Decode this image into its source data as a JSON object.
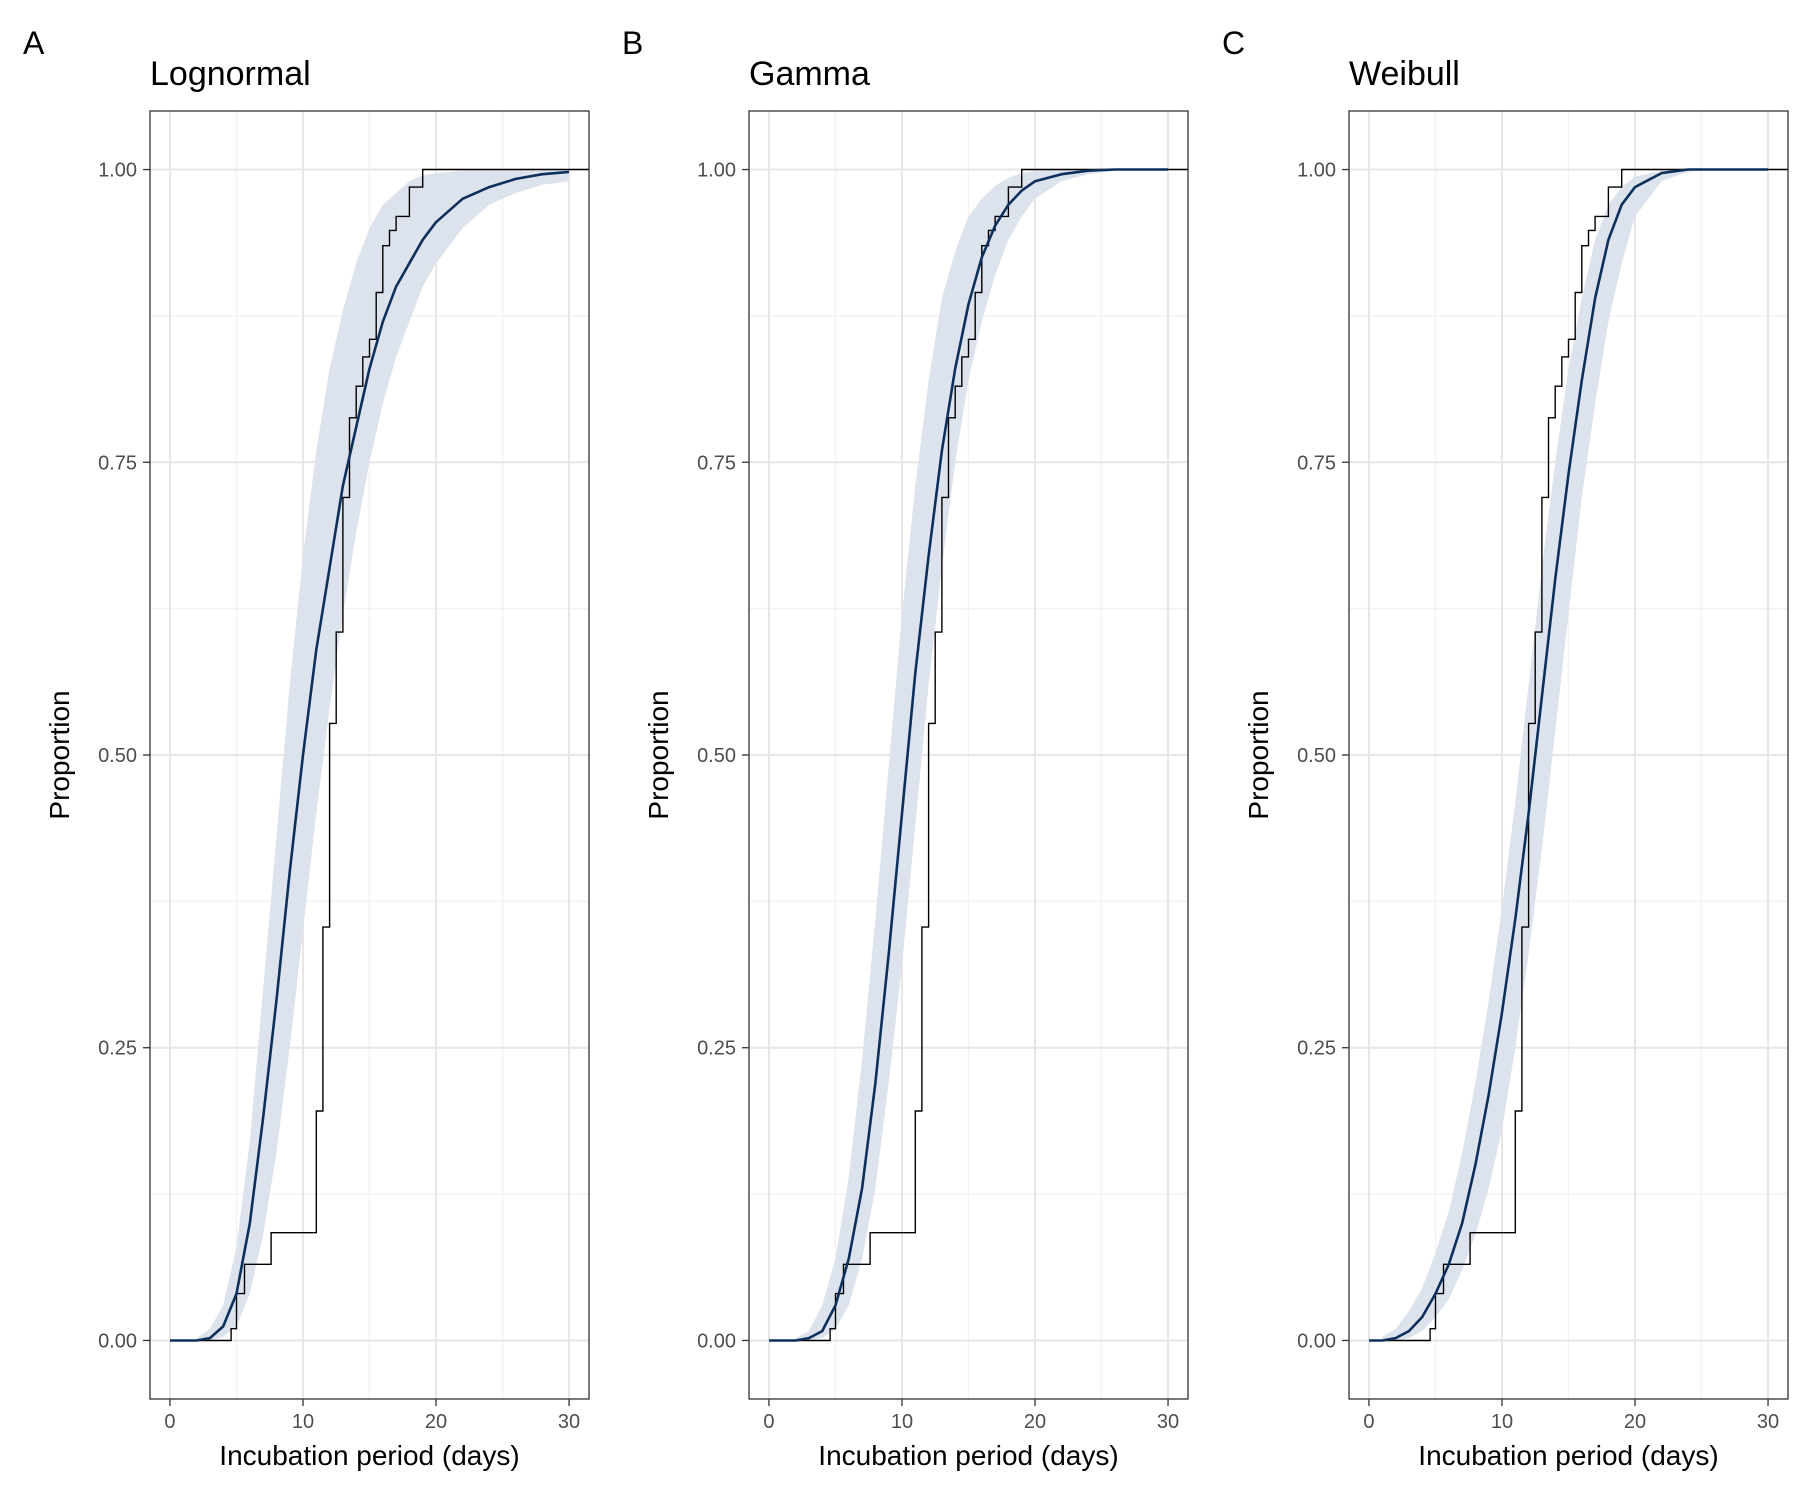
{
  "colors": {
    "fit_line": "#0d2f5c",
    "band_fill": "#dde3ec",
    "step_line": "#000000",
    "grid_major": "#e6e6e6",
    "grid_minor": "#f2f2f2",
    "panel_border": "#333333"
  },
  "chart_data": [
    {
      "type": "line",
      "panel_letter": "A",
      "title": "Lognormal",
      "xlabel": "Incubation period (days)",
      "ylabel": "Proportion",
      "xlim": [
        -1.5,
        31.5
      ],
      "ylim": [
        -0.05,
        1.05
      ],
      "x_ticks": [
        0,
        10,
        20,
        30
      ],
      "x_tick_labels": [
        "0",
        "10",
        "20",
        "30"
      ],
      "y_ticks": [
        0,
        0.25,
        0.5,
        0.75,
        1
      ],
      "y_tick_labels": [
        "0.00",
        "0.25",
        "0.50",
        "0.75",
        "1.00"
      ],
      "grid": true,
      "fit_curve": {
        "x": [
          0,
          2,
          3,
          4,
          5,
          6,
          7,
          8,
          9,
          10,
          11,
          12,
          13,
          14,
          15,
          16,
          17,
          18,
          19,
          20,
          22,
          24,
          26,
          28,
          30
        ],
        "y": [
          0,
          0,
          0.002,
          0.012,
          0.04,
          0.1,
          0.19,
          0.29,
          0.4,
          0.5,
          0.59,
          0.66,
          0.73,
          0.78,
          0.83,
          0.87,
          0.9,
          0.92,
          0.94,
          0.955,
          0.975,
          0.985,
          0.992,
          0.996,
          0.998
        ]
      },
      "band": {
        "x": [
          2,
          3,
          4,
          5,
          6,
          7,
          8,
          9,
          10,
          11,
          12,
          13,
          14,
          15,
          16,
          17,
          18,
          19,
          20,
          22,
          24,
          26,
          28,
          30
        ],
        "lower": [
          0,
          0,
          0.003,
          0.012,
          0.04,
          0.09,
          0.16,
          0.25,
          0.35,
          0.45,
          0.54,
          0.62,
          0.69,
          0.75,
          0.8,
          0.84,
          0.87,
          0.9,
          0.92,
          0.95,
          0.97,
          0.98,
          0.987,
          0.99
        ],
        "upper": [
          0.002,
          0.01,
          0.03,
          0.08,
          0.17,
          0.3,
          0.43,
          0.56,
          0.67,
          0.76,
          0.83,
          0.88,
          0.92,
          0.95,
          0.97,
          0.98,
          0.99,
          0.995,
          0.997,
          0.999,
          1,
          1,
          1,
          1
        ]
      },
      "ecdf": {
        "x": [
          0,
          4.6,
          5,
          5.6,
          7.6,
          11,
          11.5,
          12,
          12.5,
          13,
          13.5,
          14,
          14.5,
          15,
          15.5,
          16,
          16.5,
          17,
          18,
          19,
          31.5
        ],
        "y": [
          0,
          0.01,
          0.04,
          0.065,
          0.092,
          0.196,
          0.353,
          0.527,
          0.605,
          0.72,
          0.788,
          0.815,
          0.84,
          0.855,
          0.895,
          0.935,
          0.948,
          0.96,
          0.985,
          1,
          1
        ]
      }
    },
    {
      "type": "line",
      "panel_letter": "B",
      "title": "Gamma",
      "xlabel": "Incubation period (days)",
      "ylabel": "Proportion",
      "xlim": [
        -1.5,
        31.5
      ],
      "ylim": [
        -0.05,
        1.05
      ],
      "x_ticks": [
        0,
        10,
        20,
        30
      ],
      "x_tick_labels": [
        "0",
        "10",
        "20",
        "30"
      ],
      "y_ticks": [
        0,
        0.25,
        0.5,
        0.75,
        1
      ],
      "y_tick_labels": [
        "0.00",
        "0.25",
        "0.50",
        "0.75",
        "1.00"
      ],
      "grid": true,
      "fit_curve": {
        "x": [
          0,
          2,
          3,
          4,
          5,
          6,
          7,
          8,
          9,
          10,
          11,
          12,
          13,
          14,
          15,
          16,
          17,
          18,
          19,
          20,
          22,
          24,
          26,
          28,
          30
        ],
        "y": [
          0,
          0,
          0.002,
          0.008,
          0.03,
          0.07,
          0.13,
          0.22,
          0.33,
          0.45,
          0.57,
          0.67,
          0.76,
          0.83,
          0.885,
          0.925,
          0.952,
          0.97,
          0.982,
          0.99,
          0.996,
          0.999,
          1,
          1,
          1
        ]
      },
      "band": {
        "x": [
          2,
          3,
          4,
          5,
          6,
          7,
          8,
          9,
          10,
          11,
          12,
          13,
          14,
          15,
          16,
          17,
          18,
          19,
          20,
          22,
          24,
          26,
          28,
          30
        ],
        "lower": [
          0,
          0,
          0.002,
          0.01,
          0.03,
          0.07,
          0.13,
          0.22,
          0.32,
          0.44,
          0.56,
          0.66,
          0.75,
          0.82,
          0.87,
          0.91,
          0.94,
          0.96,
          0.975,
          0.99,
          0.996,
          0.999,
          1,
          1
        ],
        "upper": [
          0.002,
          0.008,
          0.03,
          0.07,
          0.14,
          0.24,
          0.36,
          0.49,
          0.62,
          0.73,
          0.82,
          0.89,
          0.93,
          0.96,
          0.975,
          0.986,
          0.993,
          0.997,
          0.999,
          1,
          1,
          1,
          1,
          1
        ]
      },
      "ecdf": {
        "x": [
          0,
          4.6,
          5,
          5.6,
          7.6,
          11,
          11.5,
          12,
          12.5,
          13,
          13.5,
          14,
          14.5,
          15,
          15.5,
          16,
          16.5,
          17,
          18,
          19,
          31.5
        ],
        "y": [
          0,
          0.01,
          0.04,
          0.065,
          0.092,
          0.196,
          0.353,
          0.527,
          0.605,
          0.72,
          0.788,
          0.815,
          0.84,
          0.855,
          0.895,
          0.935,
          0.948,
          0.96,
          0.985,
          1,
          1
        ]
      }
    },
    {
      "type": "line",
      "panel_letter": "C",
      "title": "Weibull",
      "xlabel": "Incubation period (days)",
      "ylabel": "Proportion",
      "xlim": [
        -1.5,
        31.5
      ],
      "ylim": [
        -0.05,
        1.05
      ],
      "x_ticks": [
        0,
        10,
        20,
        30
      ],
      "x_tick_labels": [
        "0",
        "10",
        "20",
        "30"
      ],
      "y_ticks": [
        0,
        0.25,
        0.5,
        0.75,
        1
      ],
      "y_tick_labels": [
        "0.00",
        "0.25",
        "0.50",
        "0.75",
        "1.00"
      ],
      "grid": true,
      "fit_curve": {
        "x": [
          0,
          1,
          2,
          3,
          4,
          5,
          6,
          7,
          8,
          9,
          10,
          11,
          12,
          13,
          14,
          15,
          16,
          17,
          18,
          19,
          20,
          22,
          24,
          26,
          28,
          30
        ],
        "y": [
          0,
          0,
          0.002,
          0.008,
          0.02,
          0.04,
          0.065,
          0.1,
          0.15,
          0.21,
          0.28,
          0.36,
          0.45,
          0.55,
          0.65,
          0.74,
          0.82,
          0.89,
          0.94,
          0.97,
          0.985,
          0.997,
          1,
          1,
          1,
          1
        ]
      },
      "band": {
        "x": [
          1,
          2,
          3,
          4,
          5,
          6,
          7,
          8,
          9,
          10,
          11,
          12,
          13,
          14,
          15,
          16,
          17,
          18,
          19,
          20,
          22,
          24,
          26,
          28,
          30
        ],
        "lower": [
          0,
          0,
          0.002,
          0.008,
          0.02,
          0.035,
          0.06,
          0.09,
          0.13,
          0.18,
          0.25,
          0.33,
          0.42,
          0.52,
          0.62,
          0.72,
          0.8,
          0.87,
          0.92,
          0.96,
          0.99,
          0.998,
          1,
          1,
          1
        ],
        "upper": [
          0.003,
          0.01,
          0.025,
          0.045,
          0.075,
          0.11,
          0.16,
          0.22,
          0.29,
          0.37,
          0.46,
          0.56,
          0.66,
          0.75,
          0.83,
          0.89,
          0.94,
          0.97,
          0.985,
          0.994,
          0.999,
          1,
          1,
          1,
          1
        ]
      },
      "ecdf": {
        "x": [
          0,
          4.6,
          5,
          5.6,
          7.6,
          11,
          11.5,
          12,
          12.5,
          13,
          13.5,
          14,
          14.5,
          15,
          15.5,
          16,
          16.5,
          17,
          18,
          19,
          31.5
        ],
        "y": [
          0,
          0.01,
          0.04,
          0.065,
          0.092,
          0.196,
          0.353,
          0.527,
          0.605,
          0.72,
          0.788,
          0.815,
          0.84,
          0.855,
          0.895,
          0.935,
          0.948,
          0.96,
          0.985,
          1,
          1
        ]
      }
    }
  ]
}
